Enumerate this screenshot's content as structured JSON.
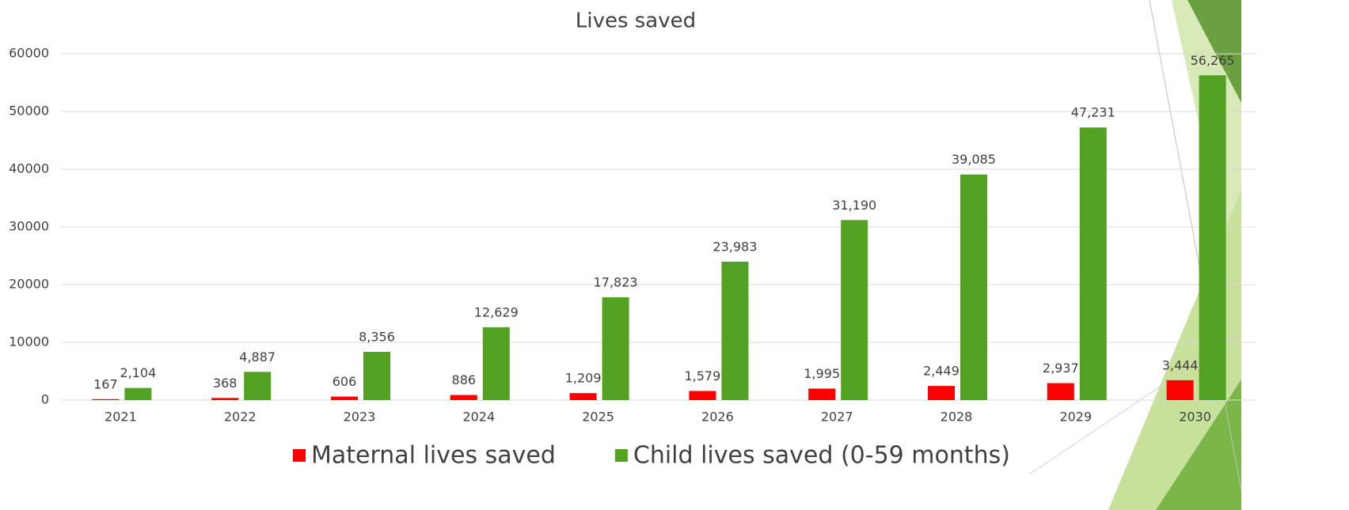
{
  "chart_data": {
    "type": "bar",
    "title": "Lives saved",
    "categories": [
      "2021",
      "2022",
      "2023",
      "2024",
      "2025",
      "2026",
      "2027",
      "2028",
      "2029",
      "2030"
    ],
    "series": [
      {
        "name": "Maternal lives saved",
        "color": "#ff0000",
        "values": [
          167,
          368,
          606,
          886,
          1209,
          1579,
          1995,
          2449,
          2937,
          3444
        ],
        "value_labels": [
          "167",
          "368",
          "606",
          "886",
          "1,209",
          "1,579",
          "1,995",
          "2,449",
          "2,937",
          "3,444"
        ]
      },
      {
        "name": "Child lives saved (0-59 months)",
        "color": "#52a123",
        "values": [
          2104,
          4887,
          8356,
          12629,
          17823,
          23983,
          31190,
          39085,
          47231,
          56265
        ],
        "value_labels": [
          "2,104",
          "4,887",
          "8,356",
          "12,629",
          "17,823",
          "23,983",
          "31,190",
          "39,085",
          "47,231",
          "56,265"
        ]
      }
    ],
    "ylim": [
      0,
      60000
    ],
    "yticks": [
      0,
      10000,
      20000,
      30000,
      40000,
      50000,
      60000
    ],
    "grid": true,
    "legend": "bottom"
  }
}
